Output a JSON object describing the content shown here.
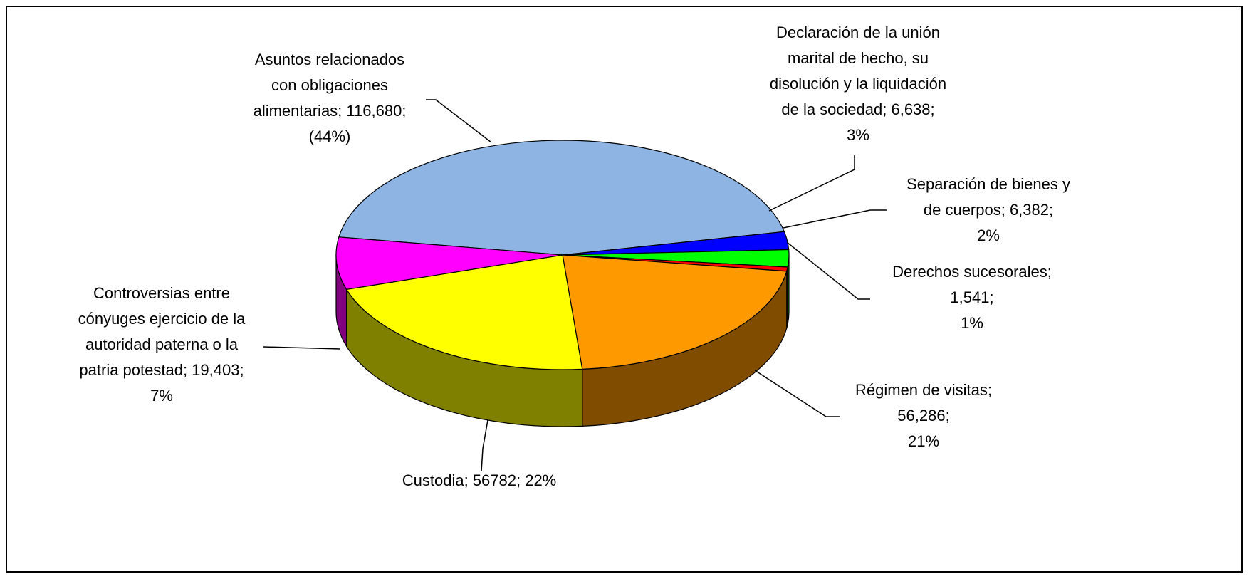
{
  "chart_data": {
    "type": "pie3d",
    "labels": [
      [
        "Asuntos relacionados",
        "con obligaciones",
        "alimentarias; 116,680;",
        "(44%)"
      ],
      [
        "Declaración de la unión",
        "marital de hecho, su",
        "disolución y la liquidación",
        "de la sociedad; 6,638;",
        "3%"
      ],
      [
        "Separación de bienes y",
        "de cuerpos; 6,382;",
        "2%"
      ],
      [
        "Derechos sucesorales;",
        "1,541;",
        "1%"
      ],
      [
        "Régimen de visitas;",
        "56,286;",
        "21%"
      ],
      [
        "Custodia; 56782; 22%"
      ],
      [
        "Controversias entre",
        "cónyuges ejercicio de la",
        "autoridad paterna o la",
        "patria potestad; 19,403;",
        "7%"
      ]
    ],
    "values": [
      116680,
      6638,
      6382,
      1541,
      56286,
      56782,
      19403
    ],
    "colors": [
      "#8db4e2",
      "#0000ff",
      "#00ff00",
      "#ff0000",
      "#ff9900",
      "#ffff00",
      "#ff00ff"
    ]
  }
}
